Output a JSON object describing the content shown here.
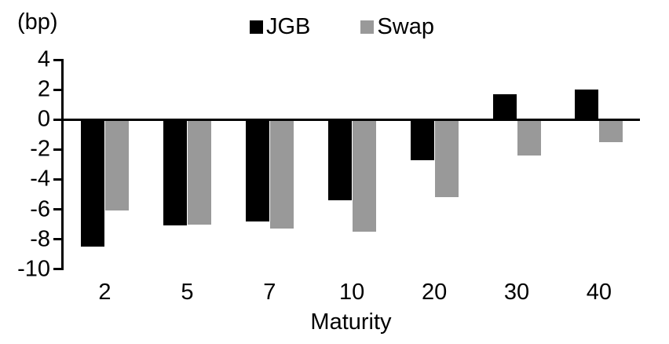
{
  "chart_data": {
    "type": "bar",
    "unit_label": "(bp)",
    "xlabel": "Maturity",
    "categories": [
      "2",
      "5",
      "7",
      "10",
      "20",
      "30",
      "40"
    ],
    "series": [
      {
        "name": "JGB",
        "color": "#000000",
        "values": [
          -8.5,
          -7.1,
          -6.8,
          -5.4,
          -2.7,
          1.7,
          2.0
        ]
      },
      {
        "name": "Swap",
        "color": "#999999",
        "values": [
          -6.1,
          -7.0,
          -7.3,
          -7.5,
          -5.2,
          -2.4,
          -1.5
        ]
      }
    ],
    "yticks": [
      4,
      2,
      0,
      -2,
      -4,
      -6,
      -8,
      -10
    ],
    "ylim": [
      -10,
      4
    ],
    "legend_position": "top",
    "grid": false,
    "axis_color": "#000000",
    "background": "#ffffff"
  }
}
